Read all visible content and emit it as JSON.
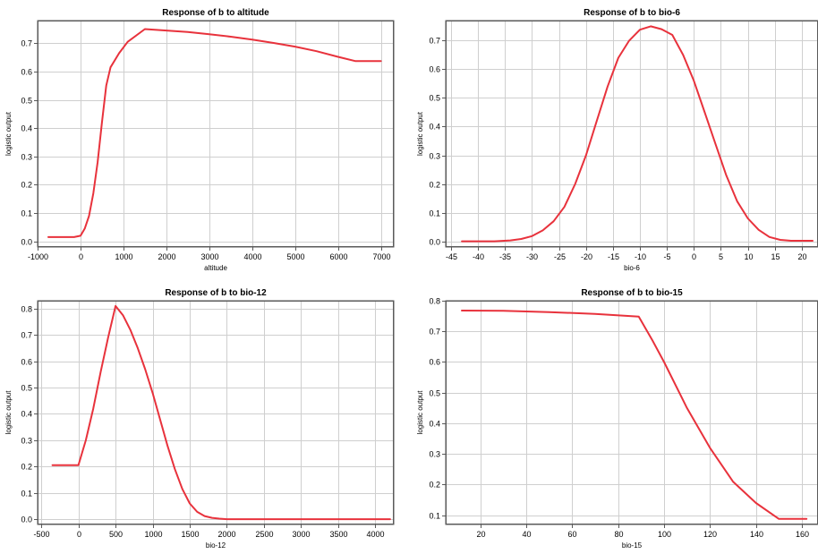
{
  "chart_data": [
    {
      "type": "line",
      "title": "Response of b to altitude",
      "xlabel": "altitude",
      "ylabel": "logistic output",
      "xlim": [
        -1000,
        7300
      ],
      "ylim": [
        -0.02,
        0.78
      ],
      "xticks": [
        -1000,
        0,
        1000,
        2000,
        3000,
        4000,
        5000,
        6000,
        7000
      ],
      "yticks": [
        0.0,
        0.1,
        0.2,
        0.3,
        0.4,
        0.5,
        0.6,
        0.7
      ],
      "ytick_labels": [
        "0.0",
        "0.1",
        "0.2",
        "0.3",
        "0.4",
        "0.5",
        "0.6",
        "0.7"
      ],
      "grid": true,
      "color": "#e8323c",
      "series": [
        {
          "x": [
            -750,
            -150,
            0,
            100,
            200,
            300,
            400,
            500,
            600,
            700,
            900,
            1100,
            1500,
            2000,
            2500,
            3000,
            3500,
            4000,
            4500,
            5000,
            5500,
            6000,
            6400,
            7000
          ],
          "y": [
            0.015,
            0.015,
            0.02,
            0.045,
            0.09,
            0.17,
            0.28,
            0.42,
            0.55,
            0.615,
            0.665,
            0.705,
            0.75,
            0.745,
            0.74,
            0.732,
            0.723,
            0.713,
            0.701,
            0.688,
            0.672,
            0.652,
            0.637,
            0.637
          ]
        }
      ]
    },
    {
      "type": "line",
      "title": "Response of b to bio-6",
      "xlabel": "bio-6",
      "ylabel": "logistic output",
      "xlim": [
        -46,
        23
      ],
      "ylim": [
        -0.02,
        0.77
      ],
      "xticks": [
        -45,
        -40,
        -35,
        -30,
        -25,
        -20,
        -15,
        -10,
        -5,
        0,
        5,
        10,
        15,
        20
      ],
      "yticks": [
        0.0,
        0.1,
        0.2,
        0.3,
        0.4,
        0.5,
        0.6,
        0.7
      ],
      "ytick_labels": [
        "0.0",
        "0.1",
        "0.2",
        "0.3",
        "0.4",
        "0.5",
        "0.6",
        "0.7"
      ],
      "grid": true,
      "color": "#e8323c",
      "series": [
        {
          "x": [
            -43,
            -37,
            -34,
            -32,
            -30,
            -28,
            -26,
            -24,
            -22,
            -20,
            -18,
            -16,
            -14,
            -12,
            -10,
            -8,
            -6,
            -4,
            -2,
            0,
            2,
            4,
            6,
            8,
            10,
            12,
            14,
            16,
            18,
            20,
            22
          ],
          "y": [
            0.0,
            0.0,
            0.003,
            0.008,
            0.018,
            0.038,
            0.07,
            0.12,
            0.2,
            0.3,
            0.42,
            0.54,
            0.64,
            0.7,
            0.738,
            0.75,
            0.74,
            0.72,
            0.65,
            0.56,
            0.45,
            0.34,
            0.23,
            0.14,
            0.08,
            0.04,
            0.015,
            0.005,
            0.002,
            0.002,
            0.002
          ]
        }
      ]
    },
    {
      "type": "line",
      "title": "Response of b to bio-12",
      "xlabel": "bio-12",
      "ylabel": "logistic output",
      "xlim": [
        -550,
        4250
      ],
      "ylim": [
        -0.02,
        0.83
      ],
      "xticks": [
        -500,
        0,
        500,
        1000,
        1500,
        2000,
        2500,
        3000,
        3500,
        4000
      ],
      "yticks": [
        0.0,
        0.1,
        0.2,
        0.3,
        0.4,
        0.5,
        0.6,
        0.7,
        0.8
      ],
      "ytick_labels": [
        "0.0",
        "0.1",
        "0.2",
        "0.3",
        "0.4",
        "0.5",
        "0.6",
        "0.7",
        "0.8"
      ],
      "grid": true,
      "color": "#e8323c",
      "series": [
        {
          "x": [
            -350,
            0,
            100,
            200,
            300,
            400,
            500,
            600,
            700,
            800,
            900,
            1000,
            1100,
            1200,
            1300,
            1400,
            1500,
            1600,
            1700,
            1800,
            1900,
            2000,
            2500,
            3000,
            3500,
            4200
          ],
          "y": [
            0.205,
            0.205,
            0.3,
            0.42,
            0.56,
            0.69,
            0.81,
            0.775,
            0.72,
            0.65,
            0.57,
            0.48,
            0.38,
            0.28,
            0.19,
            0.115,
            0.06,
            0.028,
            0.012,
            0.005,
            0.002,
            0.0,
            0.0,
            0.0,
            0.0,
            0.0
          ]
        }
      ]
    },
    {
      "type": "line",
      "title": "Response of b to bio-15",
      "xlabel": "bio-15",
      "ylabel": "logistic output",
      "xlim": [
        5,
        167
      ],
      "ylim": [
        0.07,
        0.8
      ],
      "xticks": [
        20,
        40,
        60,
        80,
        100,
        120,
        140,
        160
      ],
      "yticks": [
        0.1,
        0.2,
        0.3,
        0.4,
        0.5,
        0.6,
        0.7,
        0.8
      ],
      "ytick_labels": [
        "0.1",
        "0.2",
        "0.3",
        "0.4",
        "0.5",
        "0.6",
        "0.7",
        "0.8"
      ],
      "grid": true,
      "color": "#e8323c",
      "series": [
        {
          "x": [
            12,
            30,
            50,
            70,
            89,
            95,
            100,
            110,
            120,
            130,
            140,
            150,
            162
          ],
          "y": [
            0.768,
            0.767,
            0.763,
            0.757,
            0.748,
            0.67,
            0.6,
            0.45,
            0.32,
            0.21,
            0.14,
            0.088,
            0.088
          ]
        }
      ]
    }
  ]
}
